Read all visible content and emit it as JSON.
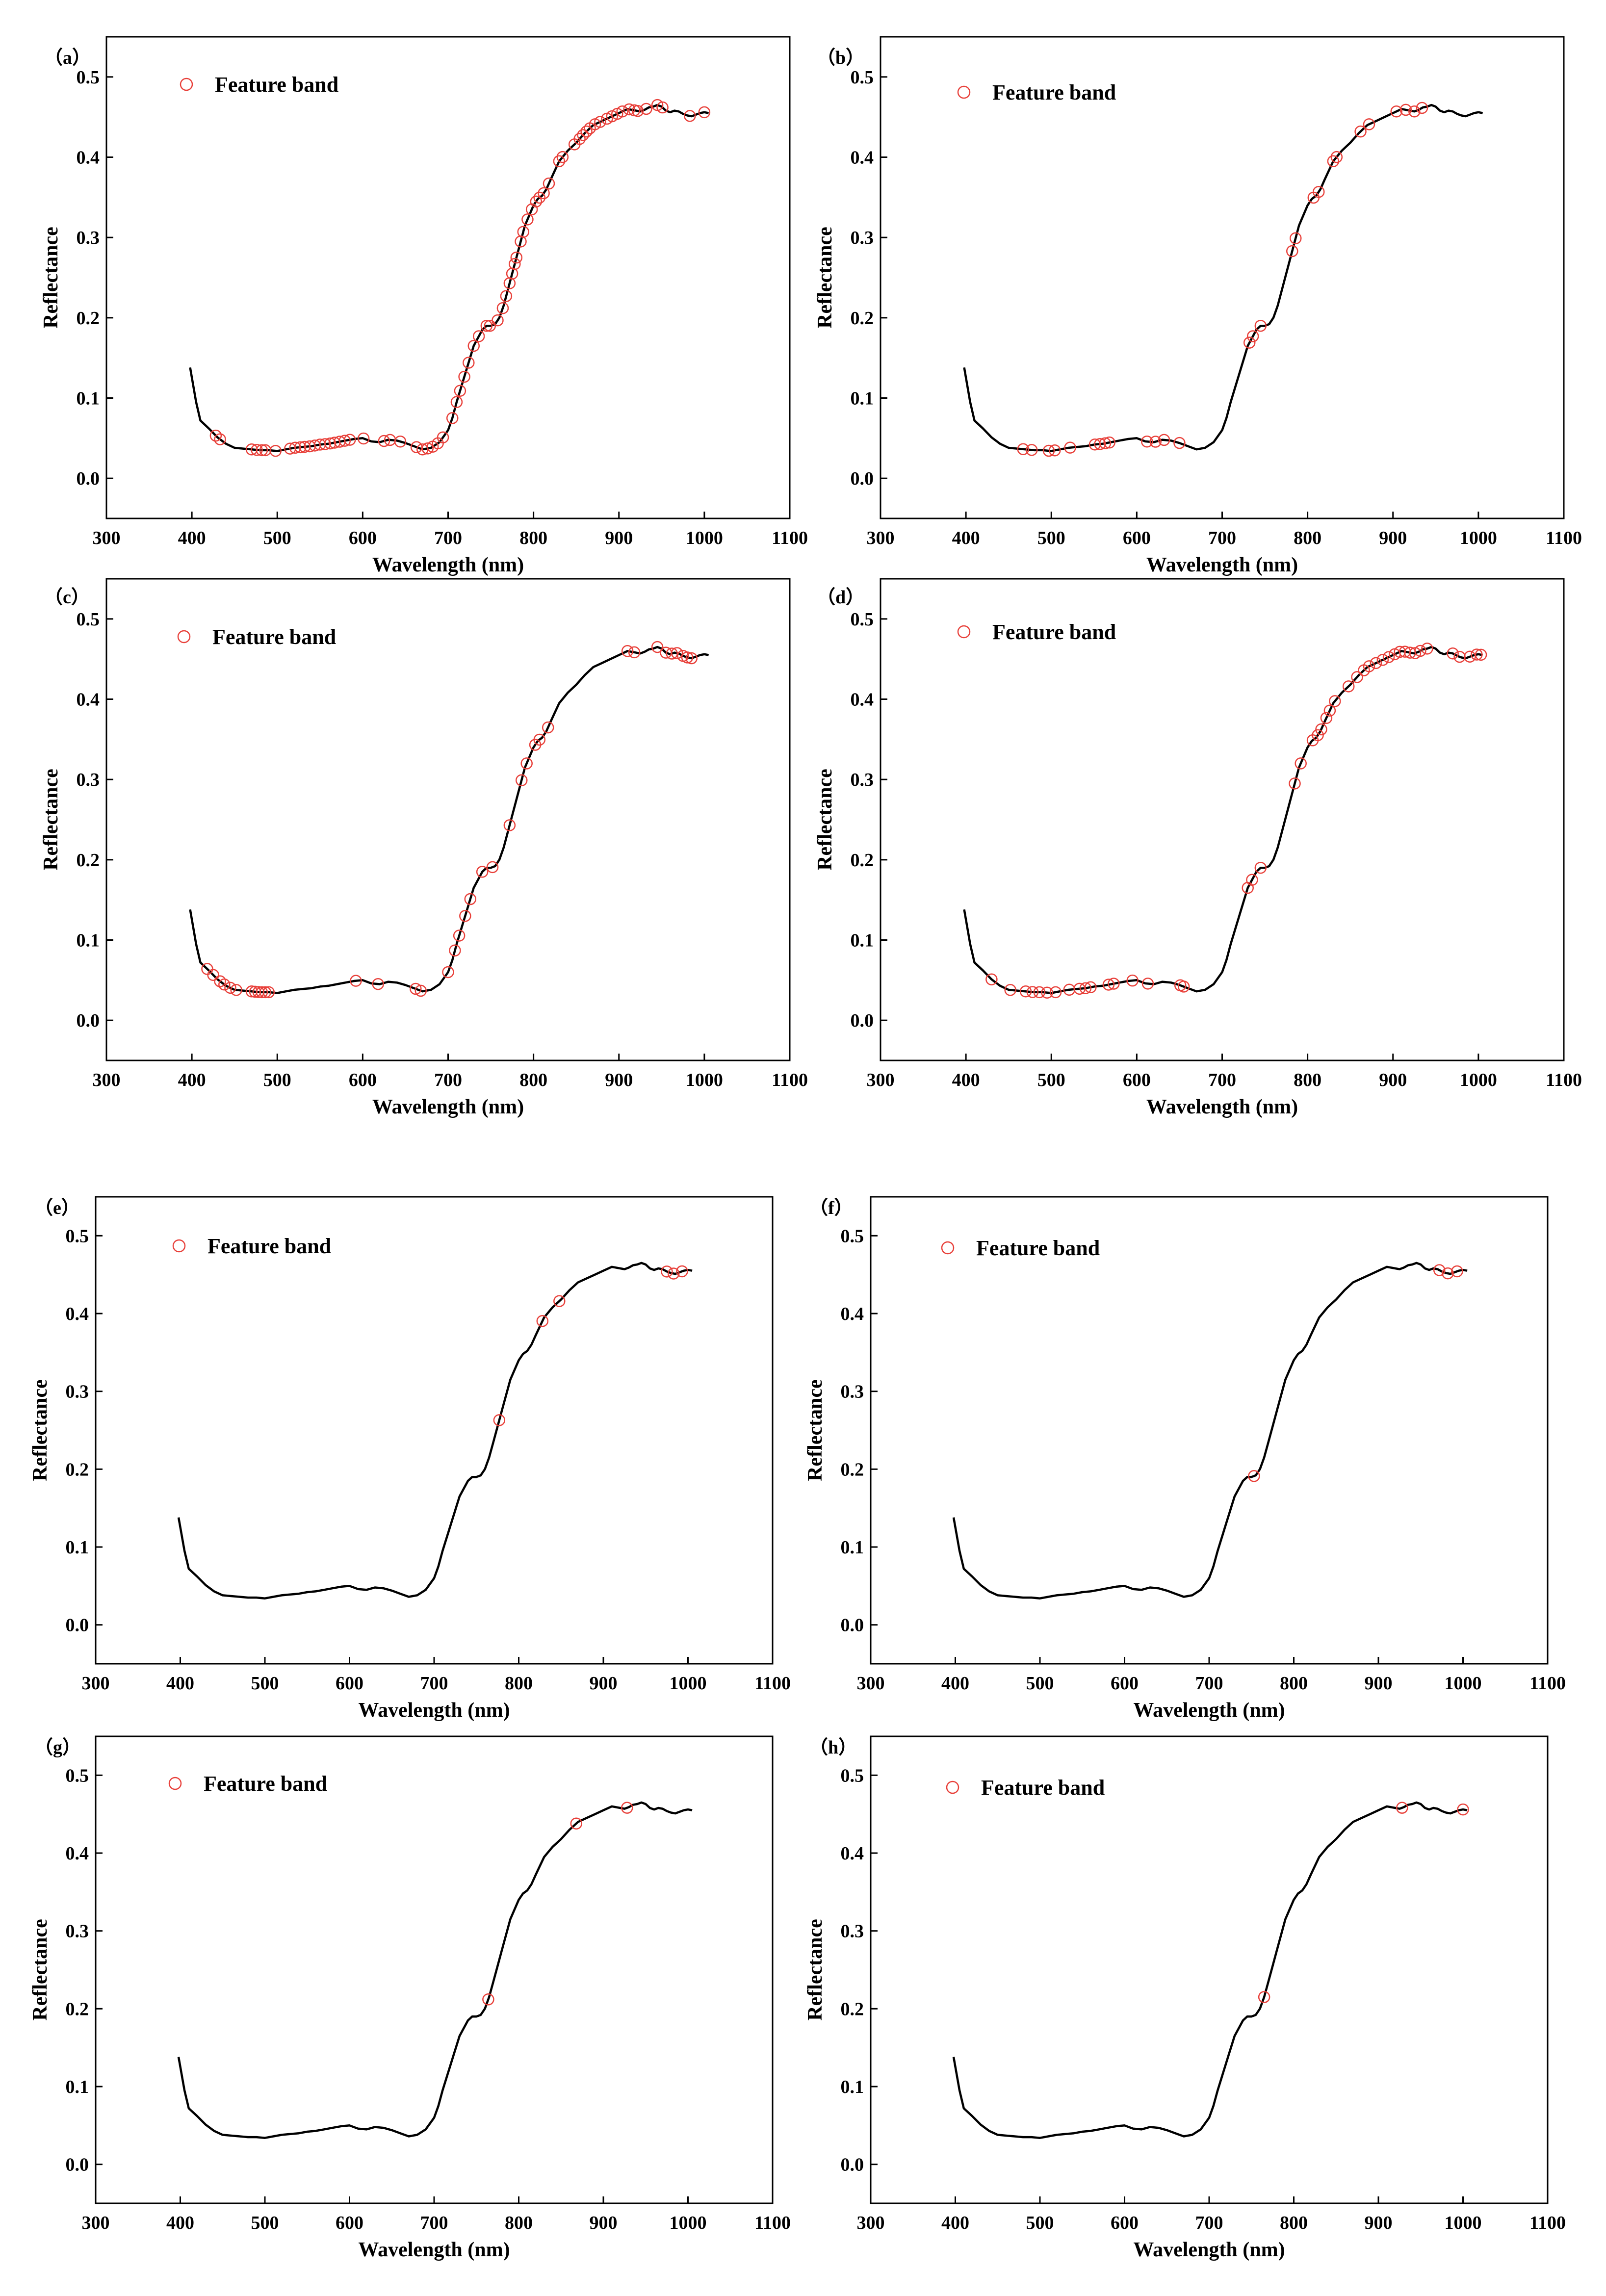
{
  "figure": {
    "description": "Reflectance spectrum with selected feature bands for eight methods"
  },
  "chart_data": [
    {
      "type": "line",
      "panel": "(a)",
      "xlabel": "Wavelength (nm)",
      "ylabel": "Reflectance",
      "xlim": [
        300,
        1100
      ],
      "ylim": [
        -0.05,
        0.55
      ],
      "xticks": [
        300,
        400,
        500,
        600,
        700,
        800,
        900,
        1000,
        1100
      ],
      "yticks": [
        0.0,
        0.1,
        0.2,
        0.3,
        0.4,
        0.5
      ],
      "legend": "Feature band",
      "legend_position": "top-left",
      "feature_bands": [
        428,
        433,
        470,
        476,
        482,
        486,
        498,
        515,
        521,
        527,
        532,
        538,
        544,
        550,
        556,
        562,
        567,
        573,
        579,
        585,
        601,
        625,
        632,
        644,
        663,
        670,
        676,
        682,
        688,
        694,
        705,
        710,
        714,
        719,
        724,
        730,
        736,
        745,
        749,
        758,
        764,
        768,
        772,
        775,
        778,
        780,
        785,
        788,
        793,
        798,
        803,
        807,
        812,
        818,
        830,
        834,
        848,
        854,
        858,
        862,
        866,
        872,
        878,
        886,
        892,
        898,
        904,
        912,
        918,
        922,
        932,
        945,
        951,
        983,
        1000
      ]
    },
    {
      "type": "line",
      "panel": "(b)",
      "xlabel": "Wavelength (nm)",
      "ylabel": "Reflectance",
      "xlim": [
        300,
        1100
      ],
      "ylim": [
        -0.05,
        0.55
      ],
      "xticks": [
        300,
        400,
        500,
        600,
        700,
        800,
        900,
        1000,
        1100
      ],
      "yticks": [
        0.0,
        0.1,
        0.2,
        0.3,
        0.4,
        0.5
      ],
      "legend": "Feature band",
      "legend_position": "top-left",
      "feature_bands": [
        467,
        477,
        497,
        504,
        522,
        551,
        557,
        563,
        568,
        612,
        622,
        632,
        650,
        732,
        736,
        745,
        782,
        786,
        807,
        813,
        830,
        834,
        862,
        872,
        904,
        915,
        925,
        934
      ]
    },
    {
      "type": "line",
      "panel": "(c)",
      "xlabel": "Wavelength (nm)",
      "ylabel": "Reflectance",
      "xlim": [
        300,
        1100
      ],
      "ylim": [
        -0.05,
        0.55
      ],
      "xticks": [
        300,
        400,
        500,
        600,
        700,
        800,
        900,
        1000,
        1100
      ],
      "yticks": [
        0.0,
        0.1,
        0.2,
        0.3,
        0.4,
        0.5
      ],
      "legend": "Feature band",
      "legend_position": "top-left",
      "feature_bands": [
        418,
        425,
        433,
        438,
        445,
        452,
        470,
        474,
        478,
        482,
        486,
        490,
        592,
        618,
        662,
        668,
        700,
        708,
        713,
        720,
        726,
        740,
        752,
        772,
        786,
        792,
        802,
        807,
        817,
        910,
        918,
        945,
        955,
        962,
        968,
        975,
        980,
        985
      ]
    },
    {
      "type": "line",
      "panel": "(d)",
      "xlabel": "Wavelength (nm)",
      "ylabel": "Reflectance",
      "xlim": [
        300,
        1100
      ],
      "ylim": [
        -0.05,
        0.55
      ],
      "xticks": [
        300,
        400,
        500,
        600,
        700,
        800,
        900,
        1000,
        1100
      ],
      "yticks": [
        0.0,
        0.1,
        0.2,
        0.3,
        0.4,
        0.5
      ],
      "legend": "Feature band",
      "legend_position": "top-left",
      "feature_bands": [
        430,
        452,
        470,
        478,
        486,
        495,
        505,
        521,
        533,
        540,
        546,
        567,
        573,
        595,
        613,
        651,
        655,
        730,
        735,
        745,
        785,
        792,
        806,
        812,
        816,
        822,
        826,
        832,
        848,
        858,
        866,
        872,
        880,
        888,
        895,
        902,
        908,
        914,
        920,
        926,
        932,
        940,
        970,
        978,
        990,
        998,
        1003
      ]
    },
    {
      "type": "line",
      "panel": "(e)",
      "xlabel": "Wavelength (nm)",
      "ylabel": "Reflectance",
      "xlim": [
        300,
        1100
      ],
      "ylim": [
        -0.05,
        0.55
      ],
      "xticks": [
        300,
        400,
        500,
        600,
        700,
        800,
        900,
        1000,
        1100
      ],
      "yticks": [
        0.0,
        0.1,
        0.2,
        0.3,
        0.4,
        0.5
      ],
      "legend": "Feature band",
      "legend_position": "top-left",
      "feature_bands": [
        777,
        828,
        848,
        975,
        983,
        993
      ]
    },
    {
      "type": "line",
      "panel": "(f)",
      "xlabel": "Wavelength (nm)",
      "ylabel": "Reflectance",
      "xlim": [
        300,
        1100
      ],
      "ylim": [
        -0.05,
        0.55
      ],
      "xticks": [
        300,
        400,
        500,
        600,
        700,
        800,
        900,
        1000,
        1100
      ],
      "yticks": [
        0.0,
        0.1,
        0.2,
        0.3,
        0.4,
        0.5
      ],
      "legend": "Feature band",
      "legend_position": "top-left",
      "feature_bands": [
        753,
        972,
        982,
        993
      ]
    },
    {
      "type": "line",
      "panel": "(g)",
      "xlabel": "Wavelength (nm)",
      "ylabel": "Reflectance",
      "xlim": [
        300,
        1100
      ],
      "ylim": [
        -0.05,
        0.55
      ],
      "xticks": [
        300,
        400,
        500,
        600,
        700,
        800,
        900,
        1000,
        1100
      ],
      "yticks": [
        0.0,
        0.1,
        0.2,
        0.3,
        0.4,
        0.5
      ],
      "legend": "Feature band",
      "legend_position": "top-left",
      "feature_bands": [
        764,
        868,
        928
      ]
    },
    {
      "type": "line",
      "panel": "(h)",
      "xlabel": "Wavelength (nm)",
      "ylabel": "Reflectance",
      "xlim": [
        300,
        1100
      ],
      "ylim": [
        -0.05,
        0.55
      ],
      "xticks": [
        300,
        400,
        500,
        600,
        700,
        800,
        900,
        1000,
        1100
      ],
      "yticks": [
        0.0,
        0.1,
        0.2,
        0.3,
        0.4,
        0.5
      ],
      "legend": "Feature band",
      "legend_position": "top-left",
      "feature_bands": [
        765,
        928,
        1000
      ]
    }
  ],
  "spectrum": {
    "wavelength": [
      398,
      405,
      410,
      420,
      430,
      440,
      450,
      460,
      470,
      480,
      490,
      500,
      510,
      520,
      530,
      540,
      550,
      560,
      570,
      580,
      590,
      600,
      610,
      620,
      630,
      640,
      650,
      660,
      670,
      680,
      690,
      700,
      705,
      710,
      720,
      730,
      740,
      745,
      750,
      755,
      760,
      765,
      770,
      775,
      780,
      790,
      800,
      805,
      810,
      815,
      820,
      830,
      840,
      850,
      860,
      870,
      880,
      890,
      900,
      910,
      920,
      925,
      930,
      935,
      940,
      945,
      950,
      955,
      960,
      965,
      970,
      975,
      980,
      985,
      990,
      995,
      1000,
      1005
    ],
    "reflectance": [
      0.138,
      0.095,
      0.072,
      0.062,
      0.051,
      0.043,
      0.038,
      0.037,
      0.036,
      0.035,
      0.035,
      0.034,
      0.036,
      0.038,
      0.039,
      0.04,
      0.042,
      0.043,
      0.045,
      0.047,
      0.049,
      0.05,
      0.046,
      0.045,
      0.048,
      0.047,
      0.044,
      0.04,
      0.036,
      0.038,
      0.045,
      0.06,
      0.075,
      0.095,
      0.13,
      0.165,
      0.185,
      0.19,
      0.19,
      0.192,
      0.2,
      0.215,
      0.235,
      0.255,
      0.275,
      0.315,
      0.34,
      0.348,
      0.352,
      0.36,
      0.372,
      0.395,
      0.408,
      0.418,
      0.43,
      0.44,
      0.445,
      0.45,
      0.455,
      0.46,
      0.458,
      0.457,
      0.459,
      0.462,
      0.463,
      0.465,
      0.463,
      0.458,
      0.456,
      0.458,
      0.457,
      0.454,
      0.452,
      0.451,
      0.453,
      0.455,
      0.456,
      0.455
    ]
  }
}
